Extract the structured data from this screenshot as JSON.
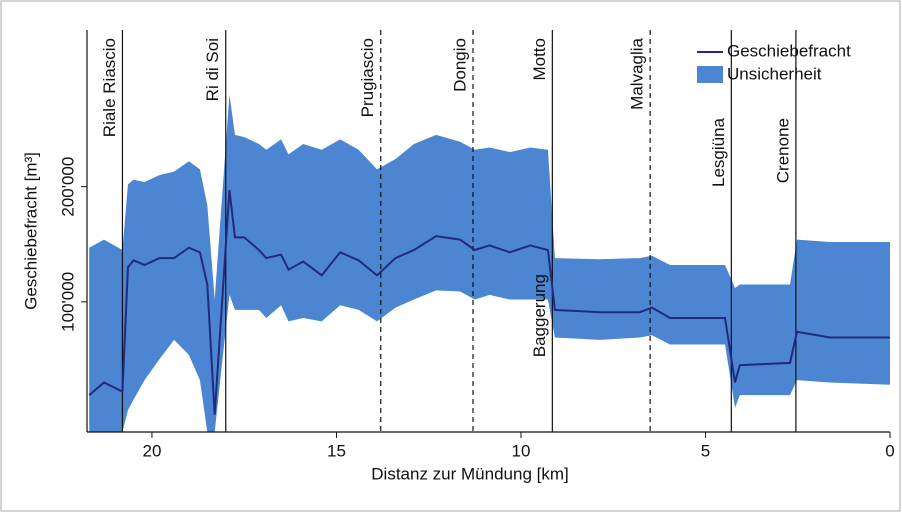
{
  "chart_data": {
    "type": "line",
    "xlabel": "Distanz zur Mündung [km]",
    "ylabel": "Geschiebefracht [m³]",
    "x": [
      21.7,
      21.3,
      20.8,
      20.65,
      20.5,
      20.2,
      19.8,
      19.4,
      19.0,
      18.7,
      18.5,
      18.3,
      17.9,
      17.75,
      17.5,
      17.1,
      16.9,
      16.5,
      16.3,
      15.9,
      15.4,
      14.9,
      14.4,
      13.9,
      13.4,
      12.9,
      12.3,
      11.65,
      11.25,
      10.85,
      10.3,
      9.75,
      9.27,
      9.08,
      7.86,
      6.78,
      6.45,
      5.96,
      4.47,
      4.2,
      4.07,
      2.71,
      2.52,
      1.63,
      0
    ],
    "series": [
      {
        "name": "Geschiebefracht",
        "color": "#232a7e",
        "values": [
          19000,
          30000,
          22000,
          130000,
          136000,
          132000,
          138000,
          138000,
          147000,
          143000,
          115000,
          2000,
          197000,
          156000,
          156000,
          145000,
          138000,
          141000,
          128000,
          135000,
          123000,
          143000,
          136000,
          123000,
          138000,
          145000,
          157000,
          154000,
          145000,
          149000,
          143000,
          149000,
          145000,
          93000,
          91000,
          91000,
          95000,
          86000,
          86000,
          30000,
          45000,
          47000,
          74000,
          69000,
          69000
        ]
      }
    ],
    "band": {
      "name": "Unsicherheit",
      "color": "#4c86d2",
      "upper": [
        147000,
        154000,
        145000,
        202000,
        206000,
        204000,
        210000,
        213000,
        222000,
        215000,
        184000,
        102000,
        280000,
        245000,
        243000,
        237000,
        232000,
        241000,
        228000,
        237000,
        232000,
        241000,
        232000,
        215000,
        224000,
        237000,
        245000,
        239000,
        232000,
        234000,
        230000,
        234000,
        232000,
        138000,
        137000,
        138000,
        140000,
        132000,
        132000,
        112000,
        115000,
        115000,
        154000,
        152000,
        152000
      ],
      "lower": [
        -13000,
        -13000,
        -13000,
        6000,
        15000,
        32000,
        50000,
        67000,
        54000,
        32000,
        -13000,
        -13000,
        106000,
        93000,
        93000,
        93000,
        86000,
        97000,
        83000,
        86000,
        83000,
        97000,
        93000,
        83000,
        95000,
        102000,
        110000,
        109000,
        102000,
        106000,
        102000,
        102000,
        102000,
        69000,
        67000,
        69000,
        71000,
        63000,
        63000,
        8000,
        19000,
        19000,
        32000,
        30000,
        28000
      ]
    },
    "vlines": [
      {
        "x": 20.8,
        "label": "Riale Riascio",
        "style": "solid"
      },
      {
        "x": 18.0,
        "label": "Ri di Soi",
        "style": "solid"
      },
      {
        "x": 13.8,
        "label": "Prugiascio",
        "style": "dashed"
      },
      {
        "x": 11.3,
        "label": "Dongio",
        "style": "dashed"
      },
      {
        "x": 9.15,
        "label": "Motto",
        "style": "solid"
      },
      {
        "x": 6.5,
        "label": "Malvaglia",
        "style": "dashed"
      },
      {
        "x": 4.3,
        "label": "Lesgiüna",
        "style": "solid"
      },
      {
        "x": 2.55,
        "label": "Crenone",
        "style": "solid"
      }
    ],
    "annotation": {
      "x": 9.15,
      "y": 88000,
      "text": "Baggerung"
    },
    "xlim": [
      21.76,
      0
    ],
    "ylim": [
      -13000,
      336000
    ],
    "xticks": [
      20,
      15,
      10,
      5,
      0
    ],
    "yticks": [
      {
        "value": 100000,
        "label": "100'000"
      },
      {
        "value": 200000,
        "label": "200'000"
      }
    ],
    "legend": "upper right"
  }
}
